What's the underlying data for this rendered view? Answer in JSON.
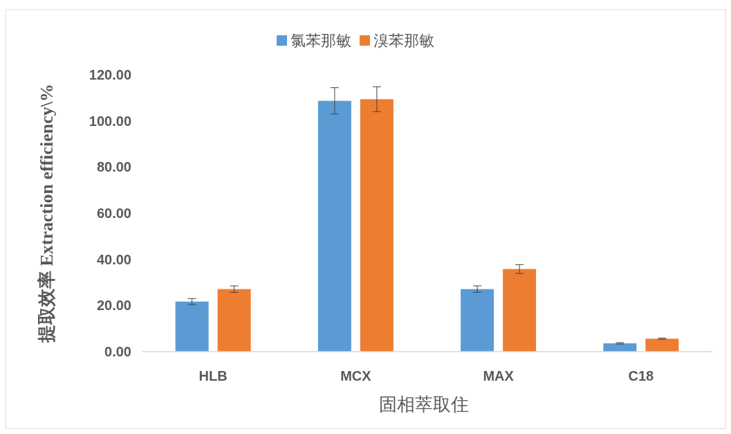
{
  "chart_data": {
    "type": "bar",
    "xlabel": "固相萃取住",
    "ylabel": "提取效率 Extraction efficiency\\%",
    "categories": [
      "HLB",
      "MCX",
      "MAX",
      "C18"
    ],
    "series": [
      {
        "name": "氯苯那敏",
        "color": "#5b9bd5",
        "values": [
          21.7,
          108.7,
          27.1,
          3.6
        ],
        "errors": [
          1.3,
          5.7,
          1.4,
          0.3
        ]
      },
      {
        "name": "溴苯那敏",
        "color": "#ed7d31",
        "values": [
          27.1,
          109.4,
          35.8,
          5.6
        ],
        "errors": [
          1.4,
          5.4,
          1.9,
          0.3
        ]
      }
    ],
    "ylim": [
      0,
      120
    ],
    "yticks": [
      {
        "value": 0,
        "label": "0.00"
      },
      {
        "value": 20,
        "label": "20.00"
      },
      {
        "value": 40,
        "label": "40.00"
      },
      {
        "value": 60,
        "label": "60.00"
      },
      {
        "value": 80,
        "label": "80.00"
      },
      {
        "value": 100,
        "label": "100.00"
      },
      {
        "value": 120,
        "label": "120.00"
      }
    ],
    "legend": "top",
    "grid": false
  }
}
